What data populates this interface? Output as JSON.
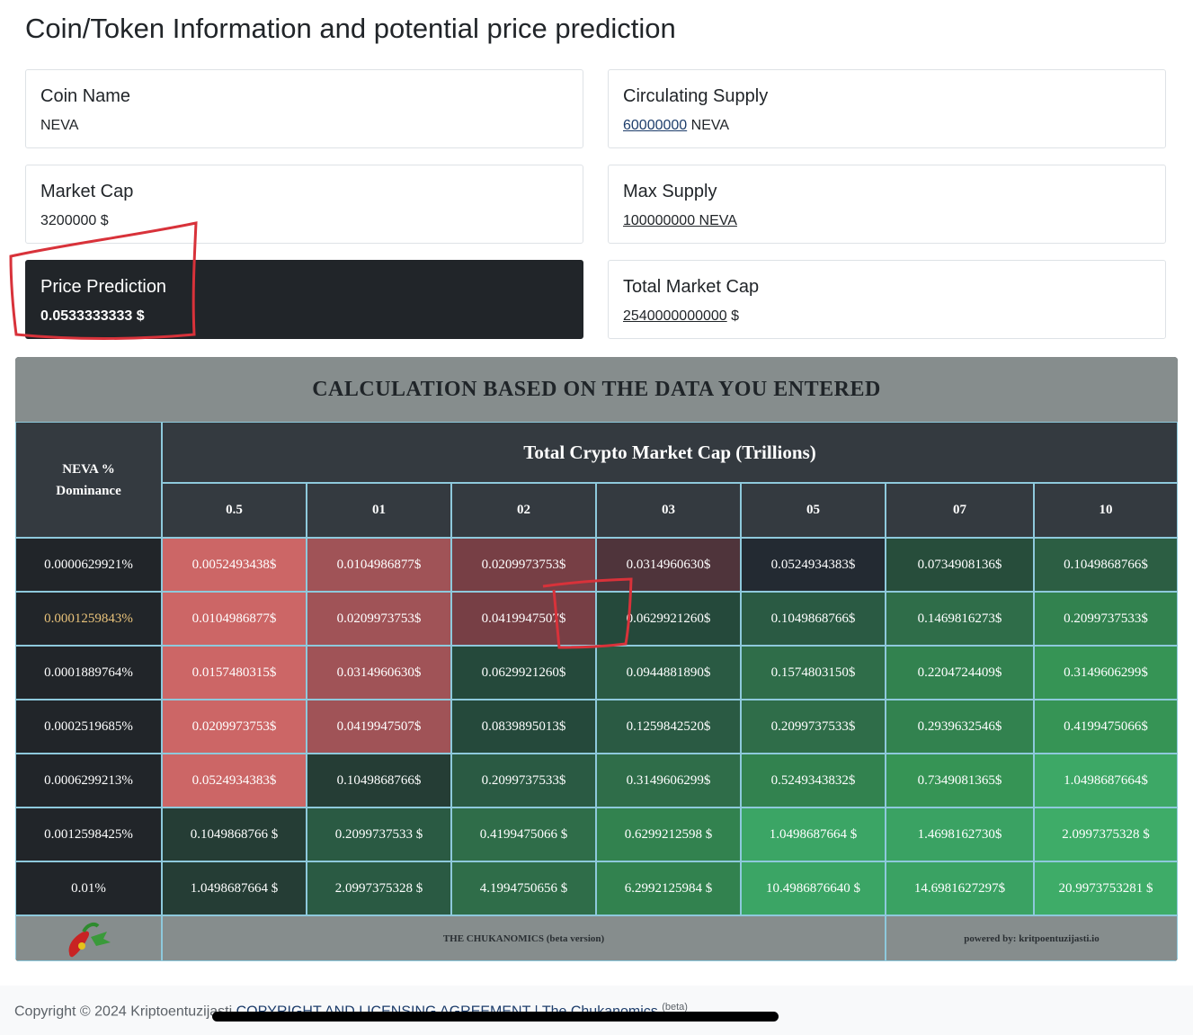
{
  "page_title": "Coin/Token Information and potential price prediction",
  "cards": {
    "coin_name": {
      "label": "Coin Name",
      "value": "NEVA"
    },
    "circulating_supply": {
      "label": "Circulating Supply",
      "amount": "60000000",
      "unit": " NEVA"
    },
    "market_cap": {
      "label": "Market Cap",
      "value": "3200000 $"
    },
    "max_supply": {
      "label": "Max Supply",
      "amount": "100000000 NEVA"
    },
    "price_prediction": {
      "label": "Price Prediction",
      "value": "0.0533333333 $"
    },
    "total_market_cap": {
      "label": "Total Market Cap",
      "amount": "2540000000000",
      "unit": " $"
    }
  },
  "calc": {
    "title": "CALCULATION BASED ON THE DATA YOU ENTERED",
    "row_header": "NEVA % Dominance",
    "col_group_header": "Total Crypto Market Cap (Trillions)",
    "columns": [
      "0.5",
      "01",
      "02",
      "03",
      "05",
      "07",
      "10"
    ],
    "rows": [
      {
        "dominance": "0.0000629921%",
        "highlight": false,
        "values": [
          "0.0052493438$",
          "0.0104986877$",
          "0.0209973753$",
          "0.0314960630$",
          "0.0524934383$",
          "0.0734908136$",
          "0.1049868766$"
        ]
      },
      {
        "dominance": "0.0001259843%",
        "highlight": true,
        "values": [
          "0.0104986877$",
          "0.0209973753$",
          "0.0419947507$",
          "0.0629921260$",
          "0.1049868766$",
          "0.1469816273$",
          "0.2099737533$"
        ]
      },
      {
        "dominance": "0.0001889764%",
        "highlight": false,
        "values": [
          "0.0157480315$",
          "0.0314960630$",
          "0.0629921260$",
          "0.0944881890$",
          "0.1574803150$",
          "0.2204724409$",
          "0.3149606299$"
        ]
      },
      {
        "dominance": "0.0002519685%",
        "highlight": false,
        "values": [
          "0.0209973753$",
          "0.0419947507$",
          "0.0839895013$",
          "0.1259842520$",
          "0.2099737533$",
          "0.2939632546$",
          "0.4199475066$"
        ]
      },
      {
        "dominance": "0.0006299213%",
        "highlight": false,
        "values": [
          "0.0524934383$",
          "0.1049868766$",
          "0.2099737533$",
          "0.3149606299$",
          "0.5249343832$",
          "0.7349081365$",
          "1.0498687664$"
        ]
      },
      {
        "dominance": "0.0012598425%",
        "highlight": false,
        "values": [
          "0.1049868766 $",
          "0.2099737533 $",
          "0.4199475066 $",
          "0.6299212598 $",
          "1.0498687664 $",
          "1.4698162730$",
          "2.0997375328 $"
        ]
      },
      {
        "dominance": "0.01%",
        "highlight": false,
        "values": [
          "1.0498687664 $",
          "2.0997375328 $",
          "4.1994750656 $",
          "6.2992125984 $",
          "10.4986876640 $",
          "14.6981627297$",
          "20.9973753281 $"
        ]
      }
    ],
    "cell_colors": [
      [
        "#cc6666",
        "#a05357",
        "#773f45",
        "#4f343b",
        "#232a32",
        "#274d3b",
        "#2c5e43"
      ],
      [
        "#cc6666",
        "#a05357",
        "#773f45",
        "#25493b",
        "#2a5a43",
        "#2f6d49",
        "#32824f"
      ],
      [
        "#cc6666",
        "#a05357",
        "#25493b",
        "#2a5a43",
        "#2f6d49",
        "#32824f",
        "#369455"
      ],
      [
        "#cc6666",
        "#a05357",
        "#25493b",
        "#2a5a43",
        "#2f6d49",
        "#32824f",
        "#369455"
      ],
      [
        "#cc6666",
        "#253d35",
        "#2a5a43",
        "#2f6d49",
        "#32824f",
        "#369455",
        "#3da866"
      ],
      [
        "#253d35",
        "#2a5a43",
        "#2f6d49",
        "#32824f",
        "#3ba565",
        "#3aa263",
        "#3eac68"
      ],
      [
        "#253d35",
        "#2a5a43",
        "#2f6d49",
        "#32824f",
        "#3ba565",
        "#3aa263",
        "#3eac68"
      ]
    ],
    "footer_center": "THE CHUKANOMICS (beta version)",
    "footer_right": "powered by: kritpoentuzijasti.io",
    "highlight_color": "#e8c27a"
  },
  "site_footer": {
    "copyright": "Copyright © 2024 Kriptoentuzijasti ",
    "link": "COPYRIGHT AND LICENSING AGREEMENT | The Chukanomics ",
    "sup": "(beta)"
  }
}
